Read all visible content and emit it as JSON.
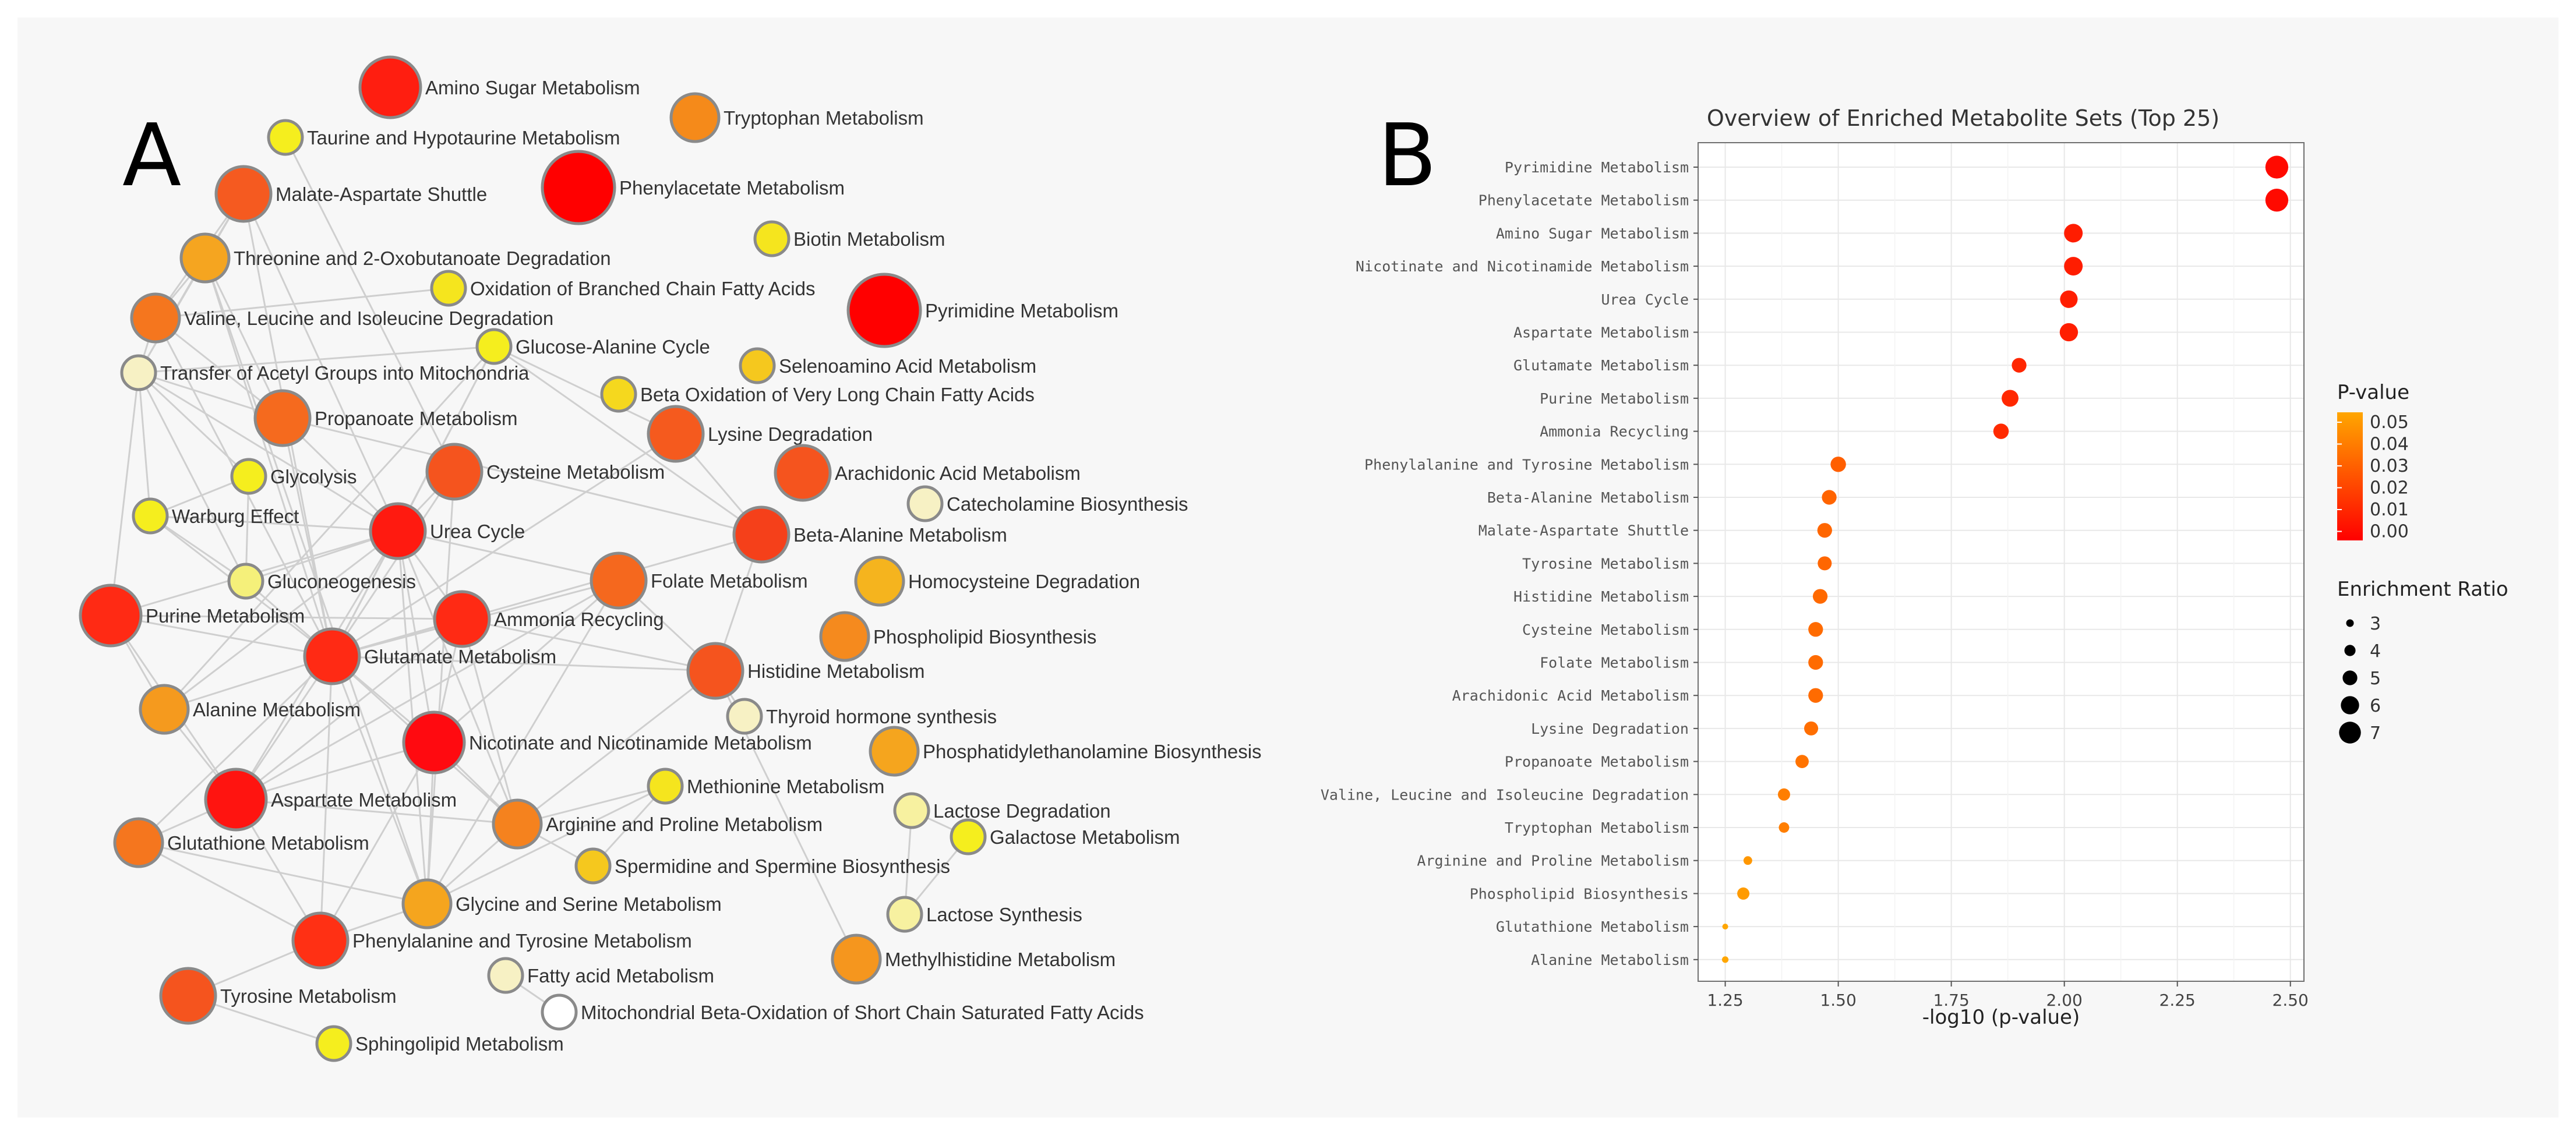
{
  "panel_labels": {
    "a": "A",
    "b": "B"
  },
  "colors": {
    "background": "#f7f7f7",
    "edge": "#cfcfcf",
    "node_stroke": "#8a8a8a",
    "pval_low": "#ff0000",
    "pval_high": "#ffa600",
    "not_enriched": "#f7f1c4"
  },
  "chart_data": [
    {
      "type": "network",
      "panel": "A",
      "title": "",
      "nodes": [
        {
          "id": "amino_sugar",
          "label": "Amino Sugar Metabolism",
          "color": "#ff1e10",
          "size": 5
        },
        {
          "id": "taurine",
          "label": "Taurine and Hypotaurine Metabolism",
          "color": "#f5ee1e",
          "size": 2
        },
        {
          "id": "tryptophan",
          "label": "Tryptophan Metabolism",
          "color": "#f58a1a",
          "size": 3
        },
        {
          "id": "phenylacetate",
          "label": "Phenylacetate Metabolism",
          "color": "#ff0000",
          "size": 7
        },
        {
          "id": "malate_aspartate",
          "label": "Malate-Aspartate Shuttle",
          "color": "#f55a20",
          "size": 4
        },
        {
          "id": "biotin",
          "label": "Biotin Metabolism",
          "color": "#f5e51e",
          "size": 2
        },
        {
          "id": "threonine",
          "label": "Threonine and 2-Oxobutanoate Degradation",
          "color": "#f5a520",
          "size": 3
        },
        {
          "id": "oxid_branched",
          "label": "Oxidation of Branched Chain Fatty Acids",
          "color": "#f5e51e",
          "size": 2
        },
        {
          "id": "pyrimidine",
          "label": "Pyrimidine Metabolism",
          "color": "#ff0000",
          "size": 7
        },
        {
          "id": "valine",
          "label": "Valine, Leucine and Isoleucine Degradation",
          "color": "#f5761e",
          "size": 3
        },
        {
          "id": "glucose_alanine",
          "label": "Glucose-Alanine Cycle",
          "color": "#f5ee1e",
          "size": 2
        },
        {
          "id": "transfer_acetyl",
          "label": "Transfer of Acetyl Groups into Mitochondria",
          "color": "#f7f1c4",
          "size": 2
        },
        {
          "id": "selenoamino",
          "label": "Selenoamino Acid Metabolism",
          "color": "#f5c81e",
          "size": 2
        },
        {
          "id": "beta_oxid_vlc",
          "label": "Beta Oxidation of Very Long Chain Fatty Acids",
          "color": "#f5d81e",
          "size": 2
        },
        {
          "id": "propanoate",
          "label": "Propanoate Metabolism",
          "color": "#f56a1e",
          "size": 4
        },
        {
          "id": "lysine",
          "label": "Lysine Degradation",
          "color": "#f55a1e",
          "size": 4
        },
        {
          "id": "glycolysis",
          "label": "Glycolysis",
          "color": "#f5ee1e",
          "size": 2
        },
        {
          "id": "cysteine",
          "label": "Cysteine Metabolism",
          "color": "#f5541e",
          "size": 4
        },
        {
          "id": "arachidonic",
          "label": "Arachidonic Acid Metabolism",
          "color": "#f5541e",
          "size": 4
        },
        {
          "id": "catecholamine",
          "label": "Catecholamine Biosynthesis",
          "color": "#f7f1c4",
          "size": 2
        },
        {
          "id": "warburg",
          "label": "Warburg Effect",
          "color": "#f5ee1e",
          "size": 2
        },
        {
          "id": "urea",
          "label": "Urea Cycle",
          "color": "#ff1a10",
          "size": 4
        },
        {
          "id": "beta_alanine",
          "label": "Beta-Alanine Metabolism",
          "color": "#f5401a",
          "size": 4
        },
        {
          "id": "gluconeogenesis",
          "label": "Gluconeogenesis",
          "color": "#f5f07a",
          "size": 2
        },
        {
          "id": "folate",
          "label": "Folate Metabolism",
          "color": "#f5681e",
          "size": 4
        },
        {
          "id": "homocysteine",
          "label": "Homocysteine Degradation",
          "color": "#f5b41e",
          "size": 3
        },
        {
          "id": "purine",
          "label": "Purine Metabolism",
          "color": "#ff2a14",
          "size": 5
        },
        {
          "id": "ammonia",
          "label": "Ammonia Recycling",
          "color": "#ff2a14",
          "size": 4
        },
        {
          "id": "phospholipid",
          "label": "Phospholipid Biosynthesis",
          "color": "#f58a1e",
          "size": 3
        },
        {
          "id": "glutamate",
          "label": "Glutamate Metabolism",
          "color": "#ff2a14",
          "size": 4
        },
        {
          "id": "histidine",
          "label": "Histidine Metabolism",
          "color": "#f5541e",
          "size": 4
        },
        {
          "id": "thyroid",
          "label": "Thyroid hormone synthesis",
          "color": "#f7f1c4",
          "size": 2
        },
        {
          "id": "alanine",
          "label": "Alanine Metabolism",
          "color": "#f59a1e",
          "size": 3
        },
        {
          "id": "nicotinate",
          "label": "Nicotinate and Nicotinamide Metabolism",
          "color": "#ff0a10",
          "size": 5
        },
        {
          "id": "pe_biosynth",
          "label": "Phosphatidylethanolamine Biosynthesis",
          "color": "#f5a51e",
          "size": 3
        },
        {
          "id": "methionine",
          "label": "Methionine Metabolism",
          "color": "#f5e51e",
          "size": 2
        },
        {
          "id": "aspartate",
          "label": "Aspartate Metabolism",
          "color": "#ff1410",
          "size": 5
        },
        {
          "id": "arginine",
          "label": "Arginine and Proline Metabolism",
          "color": "#f5821e",
          "size": 3
        },
        {
          "id": "lactose_deg",
          "label": "Lactose Degradation",
          "color": "#f7f1a0",
          "size": 2
        },
        {
          "id": "glutathione",
          "label": "Glutathione Metabolism",
          "color": "#f5761e",
          "size": 3
        },
        {
          "id": "galactose",
          "label": "Galactose Metabolism",
          "color": "#f5ee1e",
          "size": 2
        },
        {
          "id": "spermidine",
          "label": "Spermidine and Spermine Biosynthesis",
          "color": "#f5c81e",
          "size": 2
        },
        {
          "id": "glycine_serine",
          "label": "Glycine and Serine Metabolism",
          "color": "#f5a51e",
          "size": 3
        },
        {
          "id": "lactose_syn",
          "label": "Lactose Synthesis",
          "color": "#f7f1a0",
          "size": 2
        },
        {
          "id": "phenylalanine",
          "label": "Phenylalanine and Tyrosine Metabolism",
          "color": "#ff3014",
          "size": 4
        },
        {
          "id": "methylhistidine",
          "label": "Methylhistidine Metabolism",
          "color": "#f5961e",
          "size": 3
        },
        {
          "id": "fatty_acid",
          "label": "Fatty acid Metabolism",
          "color": "#f7f1c4",
          "size": 2
        },
        {
          "id": "tyrosine",
          "label": "Tyrosine Metabolism",
          "color": "#f5541e",
          "size": 4
        },
        {
          "id": "mito_beta_oxid",
          "label": "Mitochondrial Beta-Oxidation of Short Chain Saturated Fatty Acids",
          "color": "#ffffff",
          "size": 2
        },
        {
          "id": "sphingolipid",
          "label": "Sphingolipid Metabolism",
          "color": "#f5ee1e",
          "size": 2
        }
      ],
      "edges": [
        [
          "malate_aspartate",
          "threonine"
        ],
        [
          "malate_aspartate",
          "valine"
        ],
        [
          "malate_aspartate",
          "transfer_acetyl"
        ],
        [
          "malate_aspartate",
          "urea"
        ],
        [
          "malate_aspartate",
          "glutamate"
        ],
        [
          "threonine",
          "valine"
        ],
        [
          "threonine",
          "transfer_acetyl"
        ],
        [
          "threonine",
          "propanoate"
        ],
        [
          "threonine",
          "glycine_serine"
        ],
        [
          "threonine",
          "glutamate"
        ],
        [
          "valine",
          "transfer_acetyl"
        ],
        [
          "valine",
          "propanoate"
        ],
        [
          "valine",
          "glutamate"
        ],
        [
          "valine",
          "oxid_branched"
        ],
        [
          "transfer_acetyl",
          "propanoate"
        ],
        [
          "transfer_acetyl",
          "urea"
        ],
        [
          "transfer_acetyl",
          "warburg"
        ],
        [
          "transfer_acetyl",
          "glycolysis"
        ],
        [
          "transfer_acetyl",
          "gluconeogenesis"
        ],
        [
          "transfer_acetyl",
          "purine"
        ],
        [
          "propanoate",
          "urea"
        ],
        [
          "propanoate",
          "glutamate"
        ],
        [
          "glucose_alanine",
          "urea"
        ],
        [
          "glucose_alanine",
          "glutamate"
        ],
        [
          "glucose_alanine",
          "beta_alanine"
        ],
        [
          "glucose_alanine",
          "alanine"
        ],
        [
          "glucose_alanine",
          "transfer_acetyl"
        ],
        [
          "glycolysis",
          "warburg"
        ],
        [
          "glycolysis",
          "gluconeogenesis"
        ],
        [
          "warburg",
          "gluconeogenesis"
        ],
        [
          "warburg",
          "glutamate"
        ],
        [
          "warburg",
          "urea"
        ],
        [
          "urea",
          "cysteine"
        ],
        [
          "urea",
          "glutamate"
        ],
        [
          "urea",
          "ammonia"
        ],
        [
          "urea",
          "aspartate"
        ],
        [
          "urea",
          "arginine"
        ],
        [
          "urea",
          "purine"
        ],
        [
          "urea",
          "alanine"
        ],
        [
          "urea",
          "nicotinate"
        ],
        [
          "urea",
          "folate"
        ],
        [
          "urea",
          "glycine_serine"
        ],
        [
          "urea",
          "gluconeogenesis"
        ],
        [
          "cysteine",
          "glutamate"
        ],
        [
          "cysteine",
          "taurine"
        ],
        [
          "cysteine",
          "glycine_serine"
        ],
        [
          "lysine",
          "beta_alanine"
        ],
        [
          "lysine",
          "glutamate"
        ],
        [
          "lysine",
          "glucose_alanine"
        ],
        [
          "beta_alanine",
          "histidine"
        ],
        [
          "beta_alanine",
          "propanoate"
        ],
        [
          "beta_alanine",
          "glutamate"
        ],
        [
          "folate",
          "histidine"
        ],
        [
          "folate",
          "glycine_serine"
        ],
        [
          "folate",
          "glutamate"
        ],
        [
          "folate",
          "nicotinate"
        ],
        [
          "folate",
          "aspartate"
        ],
        [
          "histidine",
          "ammonia"
        ],
        [
          "histidine",
          "glutamate"
        ],
        [
          "histidine",
          "thyroid"
        ],
        [
          "histidine",
          "methylhistidine"
        ],
        [
          "histidine",
          "arginine"
        ],
        [
          "purine",
          "glutamate"
        ],
        [
          "purine",
          "aspartate"
        ],
        [
          "purine",
          "alanine"
        ],
        [
          "purine",
          "ammonia"
        ],
        [
          "ammonia",
          "glutamate"
        ],
        [
          "ammonia",
          "aspartate"
        ],
        [
          "ammonia",
          "nicotinate"
        ],
        [
          "ammonia",
          "arginine"
        ],
        [
          "glutamate",
          "alanine"
        ],
        [
          "glutamate",
          "aspartate"
        ],
        [
          "glutamate",
          "nicotinate"
        ],
        [
          "glutamate",
          "arginine"
        ],
        [
          "glutamate",
          "glutathione"
        ],
        [
          "glutamate",
          "glycine_serine"
        ],
        [
          "glutamate",
          "phenylalanine"
        ],
        [
          "glutamate",
          "gluconeogenesis"
        ],
        [
          "alanine",
          "aspartate"
        ],
        [
          "aspartate",
          "glutathione"
        ],
        [
          "aspartate",
          "arginine"
        ],
        [
          "aspartate",
          "nicotinate"
        ],
        [
          "aspartate",
          "phenylalanine"
        ],
        [
          "nicotinate",
          "arginine"
        ],
        [
          "nicotinate",
          "glycine_serine"
        ],
        [
          "nicotinate",
          "phenylalanine"
        ],
        [
          "arginine",
          "methionine"
        ],
        [
          "arginine",
          "spermidine"
        ],
        [
          "arginine",
          "glycine_serine"
        ],
        [
          "methionine",
          "spermidine"
        ],
        [
          "methionine",
          "glycine_serine"
        ],
        [
          "glycine_serine",
          "phenylalanine"
        ],
        [
          "glycine_serine",
          "glutathione"
        ],
        [
          "phenylalanine",
          "tyrosine"
        ],
        [
          "phenylalanine",
          "glutathione"
        ],
        [
          "tyrosine",
          "sphingolipid"
        ],
        [
          "fatty_acid",
          "mito_beta_oxid"
        ],
        [
          "lactose_deg",
          "galactose"
        ],
        [
          "lactose_deg",
          "lactose_syn"
        ],
        [
          "galactose",
          "lactose_syn"
        ]
      ]
    },
    {
      "type": "scatter",
      "panel": "B",
      "title": "Overview of Enriched Metabolite Sets (Top 25)",
      "xlabel": "-log10 (p-value)",
      "ylabel": "",
      "xlim": [
        1.19,
        2.53
      ],
      "xticks": [
        1.25,
        1.5,
        1.75,
        2.0,
        2.25,
        2.5
      ],
      "xtick_labels": [
        "1.25",
        "1.50",
        "1.75",
        "2.00",
        "2.25",
        "2.50"
      ],
      "grid": true,
      "categories": [
        "Pyrimidine Metabolism",
        "Phenylacetate Metabolism",
        "Amino Sugar Metabolism",
        "Nicotinate and Nicotinamide Metabolism",
        "Urea Cycle",
        "Aspartate Metabolism",
        "Glutamate Metabolism",
        "Purine Metabolism",
        "Ammonia Recycling",
        "Phenylalanine and Tyrosine Metabolism",
        "Beta-Alanine Metabolism",
        "Malate-Aspartate Shuttle",
        "Tyrosine Metabolism",
        "Histidine Metabolism",
        "Cysteine Metabolism",
        "Folate Metabolism",
        "Arachidonic Acid Metabolism",
        "Lysine Degradation",
        "Propanoate Metabolism",
        "Valine, Leucine and Isoleucine Degradation",
        "Tryptophan Metabolism",
        "Arginine and Proline Metabolism",
        "Phospholipid Biosynthesis",
        "Glutathione Metabolism",
        "Alanine Metabolism"
      ],
      "x": [
        2.47,
        2.47,
        2.02,
        2.02,
        2.01,
        2.01,
        1.9,
        1.88,
        1.86,
        1.5,
        1.48,
        1.47,
        1.47,
        1.46,
        1.45,
        1.45,
        1.45,
        1.44,
        1.42,
        1.38,
        1.38,
        1.3,
        1.29,
        1.25,
        1.25
      ],
      "p_value": [
        0.0034,
        0.0034,
        0.0095,
        0.0095,
        0.0098,
        0.0098,
        0.0126,
        0.0132,
        0.0138,
        0.0316,
        0.0331,
        0.0339,
        0.0339,
        0.0347,
        0.0355,
        0.0355,
        0.0355,
        0.0363,
        0.038,
        0.0417,
        0.0417,
        0.0501,
        0.0513,
        0.0562,
        0.0562
      ],
      "enrichment_ratio": [
        7.3,
        7.3,
        6.1,
        6.1,
        5.8,
        6.0,
        5.0,
        5.6,
        5.2,
        5.2,
        5.0,
        5.0,
        4.8,
        5.0,
        5.0,
        5.0,
        5.0,
        4.8,
        4.6,
        4.3,
        3.8,
        3.3,
        4.3,
        2.5,
        2.7
      ],
      "legend": {
        "color_title": "P-value",
        "color_ticks": [
          "0.05",
          "0.04",
          "0.03",
          "0.02",
          "0.01",
          "0.00"
        ],
        "size_title": "Enrichment Ratio",
        "size_ticks": [
          "3",
          "4",
          "5",
          "6",
          "7"
        ],
        "placement": "right"
      }
    }
  ]
}
